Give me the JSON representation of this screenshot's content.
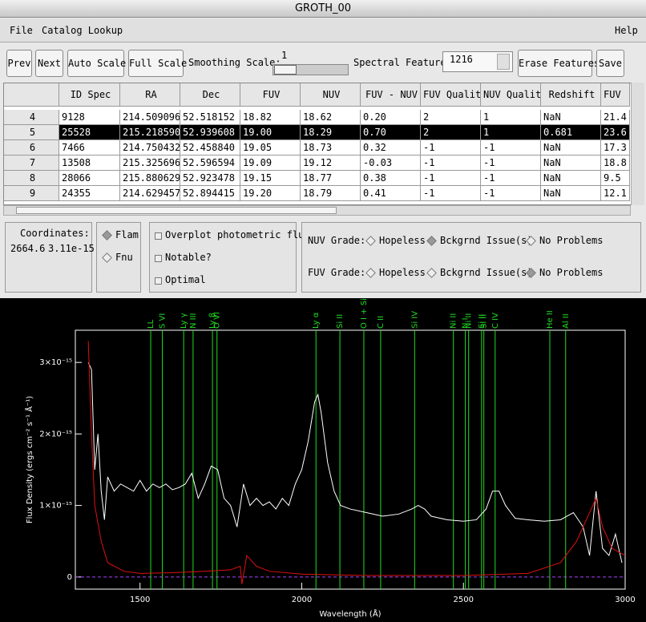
{
  "window": {
    "title": "GROTH_00"
  },
  "menu": [
    "File",
    "Catalog Lookup",
    "Help"
  ],
  "toolbar": {
    "buttons": [
      "Prev",
      "Next",
      "Auto Scale",
      "Full Scale"
    ],
    "smoothing_label": "Smoothing Scale:",
    "smoothing_value": 1,
    "feature_label": "Spectral Feature:",
    "feature_value": "1216",
    "buttons_right": [
      "Erase Features",
      "Save"
    ]
  },
  "table": {
    "columns": [
      "ID Spec",
      "RA",
      "Dec",
      "FUV",
      "NUV",
      "FUV - NUV",
      "FUV Quality",
      "NUV Quality",
      "Redshift",
      "FUV"
    ],
    "rows": [
      [
        "4",
        "9128",
        "214.509096",
        "52.518152",
        "18.82",
        "18.62",
        "0.20",
        "2",
        "1",
        "NaN",
        "21.4"
      ],
      [
        "5",
        "25528",
        "215.218590",
        "52.939608",
        "19.00",
        "18.29",
        "0.70",
        "2",
        "1",
        "0.681",
        "23.6"
      ],
      [
        "6",
        "7466",
        "214.750432",
        "52.458840",
        "19.05",
        "18.73",
        "0.32",
        "-1",
        "-1",
        "NaN",
        "17.3"
      ],
      [
        "7",
        "13508",
        "215.325696",
        "52.596594",
        "19.09",
        "19.12",
        "-0.03",
        "-1",
        "-1",
        "NaN",
        "18.8"
      ],
      [
        "8",
        "28066",
        "215.880629",
        "52.923478",
        "19.15",
        "18.77",
        "0.38",
        "-1",
        "-1",
        "NaN",
        "9.5"
      ],
      [
        "9",
        "24355",
        "214.629457",
        "52.894415",
        "19.20",
        "18.79",
        "0.41",
        "-1",
        "-1",
        "NaN",
        "12.1"
      ]
    ],
    "selected_row": 1
  },
  "panel": {
    "coordinates_label": "Coordinates:",
    "coordinates": [
      "2664.6",
      "3.11e-15"
    ],
    "units": [
      "Flam",
      "Fnu"
    ],
    "units_selected": 0,
    "checks": [
      "Overplot photometric flux?",
      "Notable?",
      "Optimal"
    ],
    "grades": [
      {
        "label": "NUV Grade:",
        "options": [
          "Hopeless",
          "Bckgrnd Issue(s)",
          "No Problems"
        ],
        "selected": 1
      },
      {
        "label": "FUV Grade:",
        "options": [
          "Hopeless",
          "Bckgrnd Issue(s)",
          "No Problems"
        ],
        "selected": 2
      }
    ]
  },
  "chart_data": {
    "type": "line",
    "xlabel": "Wavelength (Å)",
    "ylabel": "Flux Density (ergs cm⁻² s⁻¹ Å⁻¹)",
    "xlim": [
      1300,
      3000
    ],
    "ylim": [
      -1.7e-16,
      3.45e-15
    ],
    "xticks": [
      1500,
      2000,
      2500,
      3000
    ],
    "yticks": [
      0,
      {
        "value": 1e-15,
        "label": "1×10⁻¹⁵"
      },
      {
        "value": 2e-15,
        "label": "2×10⁻¹⁵"
      },
      {
        "value": 3e-15,
        "label": "3×10⁻¹⁵"
      }
    ],
    "series": [
      {
        "color": "#ffffff",
        "x": [
          1340,
          1350,
          1360,
          1370,
          1380,
          1390,
          1400,
          1420,
          1440,
          1460,
          1480,
          1500,
          1520,
          1540,
          1560,
          1580,
          1600,
          1620,
          1640,
          1660,
          1680,
          1700,
          1720,
          1740,
          1760,
          1780,
          1800,
          1820,
          1840,
          1860,
          1880,
          1900,
          1920,
          1940,
          1960,
          1980,
          2000,
          2020,
          2040,
          2050,
          2060,
          2080,
          2100,
          2120,
          2150,
          2200,
          2250,
          2300,
          2340,
          2360,
          2380,
          2400,
          2450,
          2500,
          2540,
          2570,
          2590,
          2610,
          2630,
          2660,
          2700,
          2750,
          2800,
          2840,
          2870,
          2890,
          2910,
          2930,
          2950,
          2970,
          2990
        ],
        "values": [
          3e-15,
          2.9e-15,
          1.5e-15,
          2e-15,
          1.2e-15,
          8e-16,
          1.4e-15,
          1.2e-15,
          1.3e-15,
          1.25e-15,
          1.2e-15,
          1.35e-15,
          1.2e-15,
          1.3e-15,
          1.25e-15,
          1.3e-15,
          1.22e-15,
          1.25e-15,
          1.3e-15,
          1.45e-15,
          1.1e-15,
          1.3e-15,
          1.55e-15,
          1.5e-15,
          1.1e-15,
          1e-15,
          7e-16,
          1.3e-15,
          1e-15,
          1.1e-15,
          1e-15,
          1.05e-15,
          9.5e-16,
          1.1e-15,
          1e-15,
          1.3e-15,
          1.5e-15,
          1.9e-15,
          2.45e-15,
          2.55e-15,
          2.3e-15,
          1.6e-15,
          1.2e-15,
          1e-15,
          9.5e-16,
          9e-16,
          8.5e-16,
          8.8e-16,
          9.5e-16,
          1e-15,
          9.5e-16,
          8.5e-16,
          8e-16,
          7.8e-16,
          8e-16,
          9.5e-16,
          1.2e-15,
          1.2e-15,
          1e-15,
          8.2e-16,
          8e-16,
          7.8e-16,
          8e-16,
          9e-16,
          7e-16,
          3e-16,
          1.2e-15,
          4e-16,
          3e-16,
          6e-16,
          2e-16
        ]
      },
      {
        "color": "#e01010",
        "x": [
          1340,
          1350,
          1360,
          1380,
          1400,
          1450,
          1500,
          1600,
          1700,
          1780,
          1810,
          1815,
          1830,
          1860,
          1900,
          2000,
          2200,
          2500,
          2700,
          2800,
          2850,
          2900,
          2910,
          2930,
          2960,
          3000
        ],
        "values": [
          3.3e-15,
          2e-15,
          1e-15,
          5e-16,
          2e-16,
          8e-17,
          5e-17,
          6e-17,
          8e-17,
          1e-16,
          1.5e-16,
          -1e-16,
          3e-16,
          1.5e-16,
          8e-17,
          4e-17,
          2e-17,
          2e-17,
          5e-17,
          2e-16,
          5e-16,
          1e-15,
          1.1e-15,
          7e-16,
          4e-16,
          3e-16
        ]
      }
    ],
    "features": {
      "color": "#22dd22",
      "labels": [
        "LL",
        "S VI",
        "Ly γ",
        "N III",
        "Ly β",
        "O VI",
        "Ly α",
        "Si II",
        "O I + Si II",
        "C II",
        "Si IV",
        "Ni II",
        "N I",
        "Ni II",
        "Si II",
        "Si II",
        "C IV",
        "He II",
        "Al II"
      ],
      "x": [
        1533,
        1569,
        1635,
        1664,
        1724,
        1738,
        2044,
        2118,
        2192,
        2244,
        2349,
        2469,
        2506,
        2516,
        2556,
        2563,
        2598,
        2767,
        2816
      ]
    }
  }
}
